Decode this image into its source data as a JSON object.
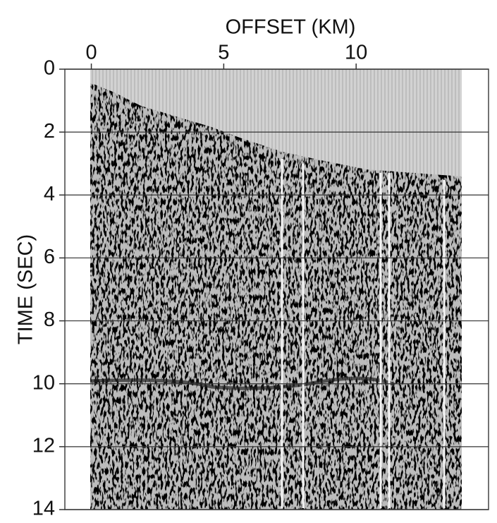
{
  "chart_data": {
    "type": "image",
    "x_label": "OFFSET (KM)",
    "y_label": "TIME (SEC)",
    "xlim": [
      -1,
      15
    ],
    "xticks": [
      0,
      5,
      10
    ],
    "ylim": [
      14,
      0
    ],
    "yticks": [
      0,
      2,
      4,
      6,
      8,
      10,
      12,
      14
    ],
    "grid": true
  }
}
